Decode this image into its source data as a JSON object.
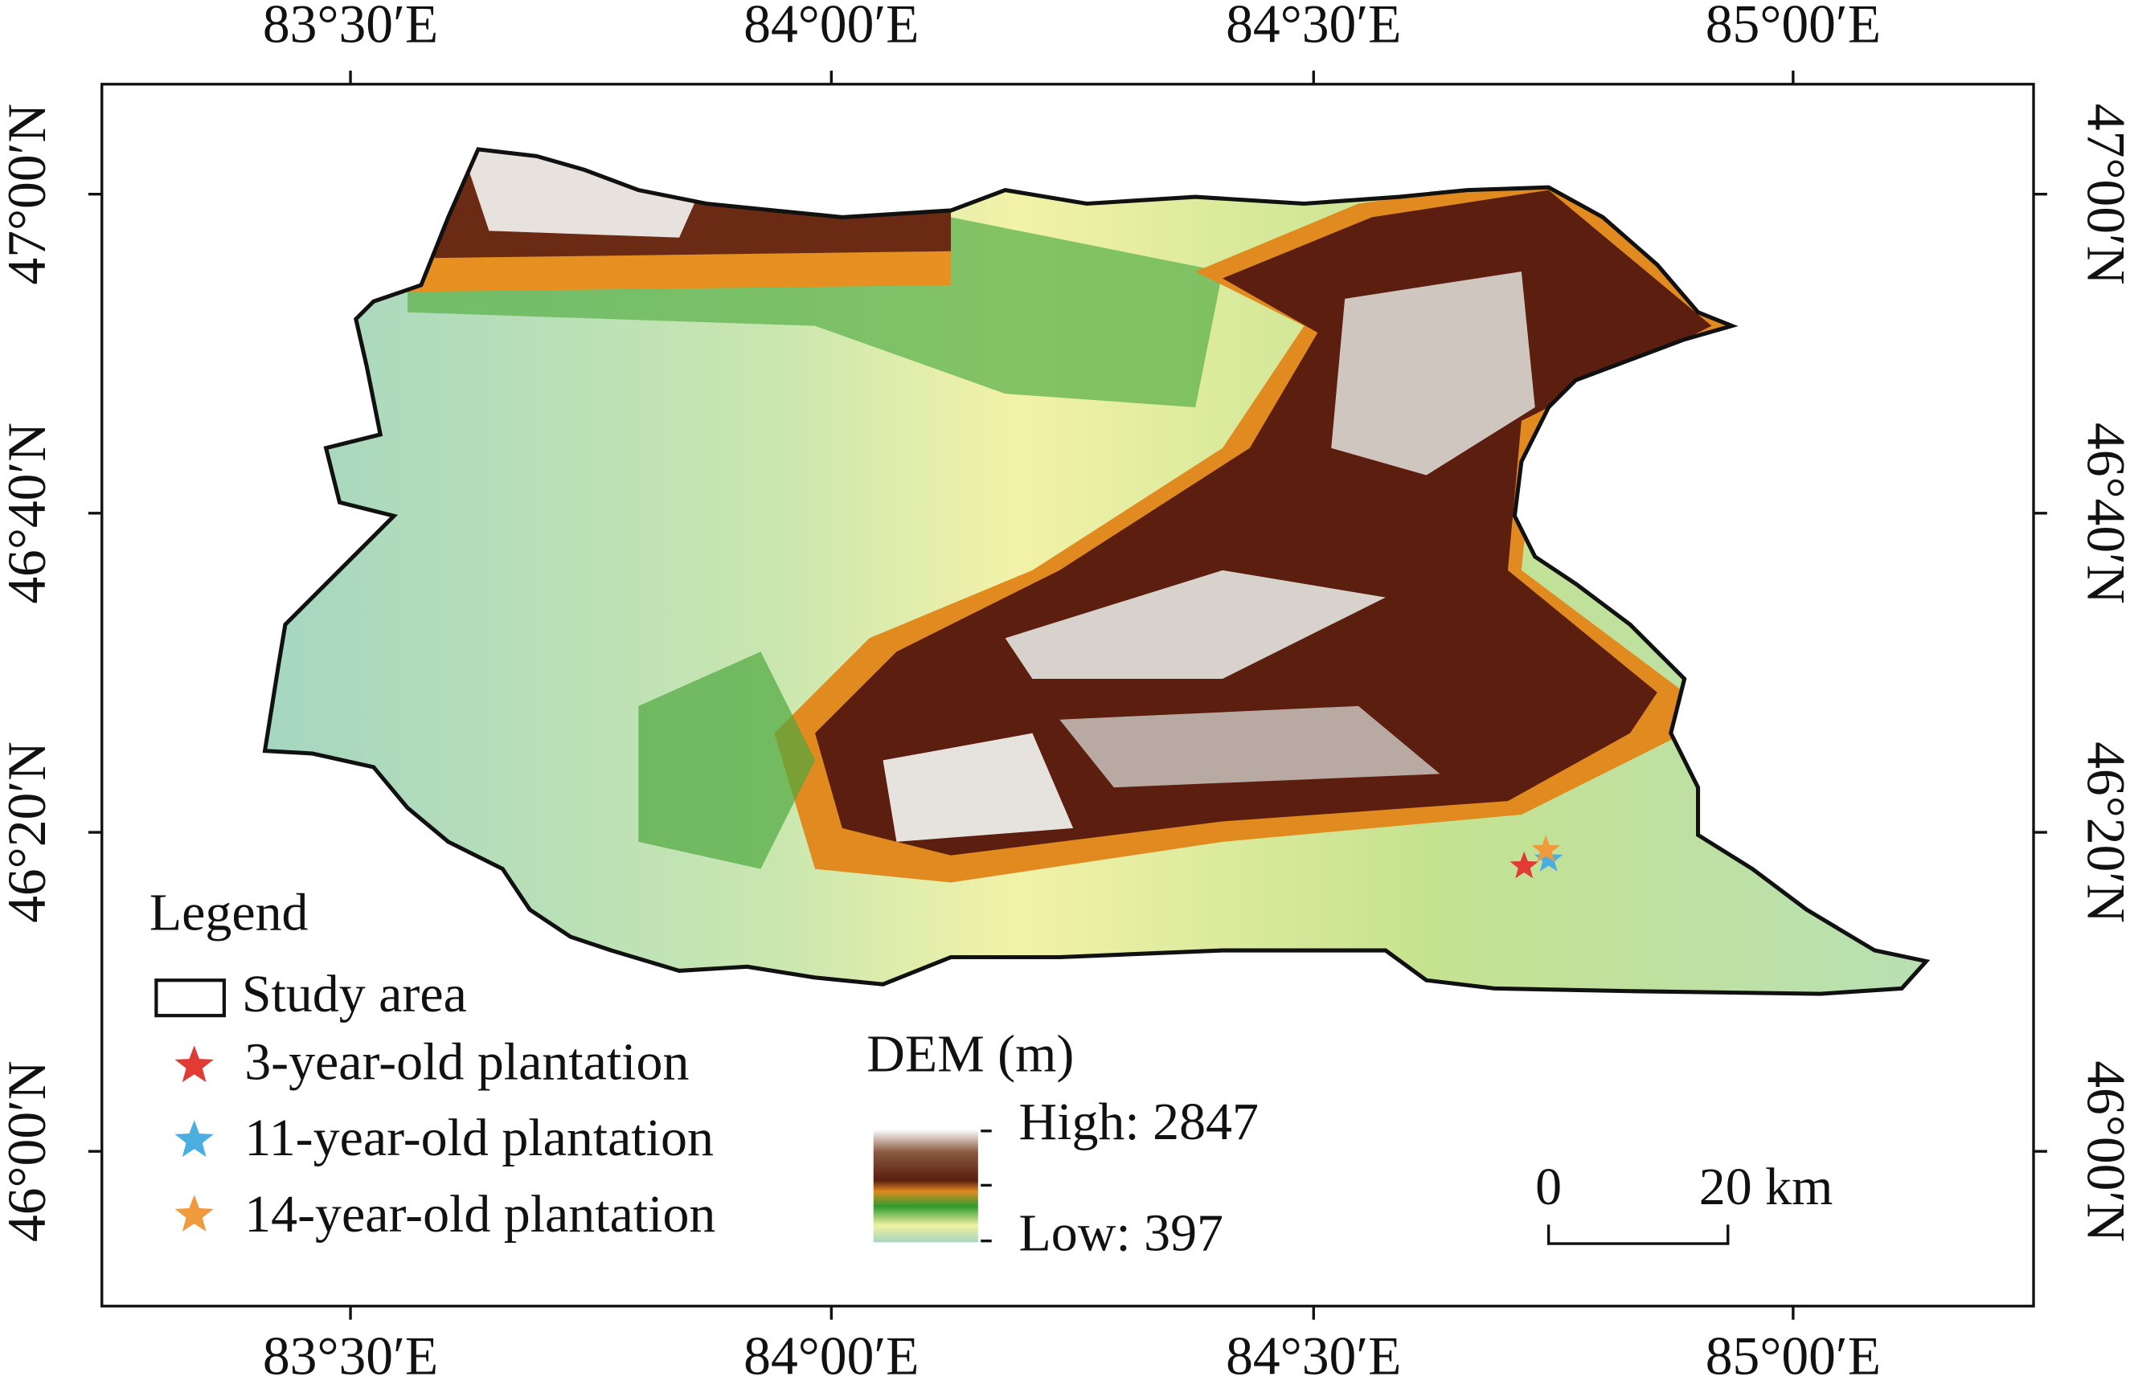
{
  "map": {
    "top_ticks": [
      "83°30′E",
      "84°00′E",
      "84°30′E",
      "85°00′E"
    ],
    "bottom_ticks": [
      "83°30′E",
      "84°00′E",
      "84°30′E",
      "85°00′E"
    ],
    "left_ticks": [
      "47°00′N",
      "46°40′N",
      "46°20′N",
      "46°00′N"
    ],
    "right_ticks": [
      "47°00′N",
      "46°40′N",
      "46°20′N",
      "46°00′N"
    ],
    "legend": {
      "title": "Legend",
      "items": [
        "Study area",
        "3-year-old plantation",
        "11-year-old plantation",
        "14-year-old plantation"
      ]
    },
    "dem": {
      "title": "DEM (m)",
      "high": "High: 2847",
      "low": "Low: 397"
    },
    "scale_bar": {
      "start": "0",
      "end": "20 km"
    }
  }
}
